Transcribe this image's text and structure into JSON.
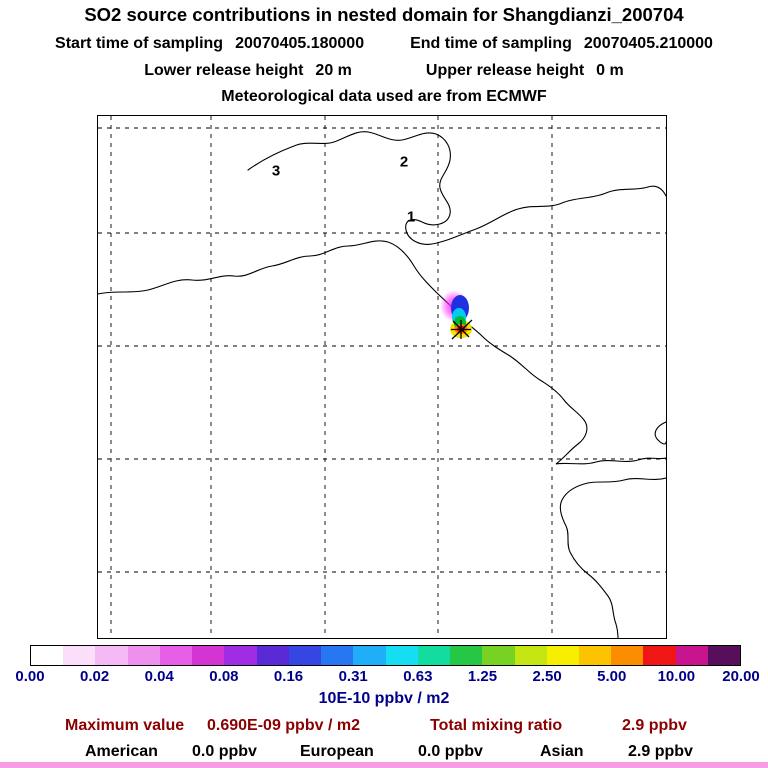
{
  "header": {
    "title": "SO2 source contributions in nested domain for Shangdianzi_200704",
    "sampling": {
      "start_label": "Start time of sampling",
      "start_value": "20070405.180000",
      "end_label": "End time of sampling",
      "end_value": "20070405.210000"
    },
    "release": {
      "lower_label": "Lower release height",
      "lower_value": "20 m",
      "upper_label": "Upper release height",
      "upper_value": "0 m"
    },
    "met_source": "Meteorological data used are from ECMWF"
  },
  "map": {
    "region_labels": [
      {
        "text": "3"
      },
      {
        "text": "2"
      },
      {
        "text": "1"
      }
    ]
  },
  "chart_data": {
    "type": "heatmap",
    "title": "SO2 source contributions in nested domain for Shangdianzi_200704",
    "units": "10E-10 ppbv / m2",
    "colorbar": {
      "tick_labels": [
        "0.00",
        "0.02",
        "0.04",
        "0.08",
        "0.16",
        "0.31",
        "0.63",
        "1.25",
        "2.50",
        "5.00",
        "10.00",
        "20.00"
      ],
      "colors": [
        "#ffffff",
        "#fadefa",
        "#f5baf5",
        "#ee90ee",
        "#e55ee5",
        "#d534d5",
        "#a02ce4",
        "#5a2ad6",
        "#3546e2",
        "#2877f2",
        "#21aef8",
        "#16def2",
        "#12dc9e",
        "#27c746",
        "#77d224",
        "#c5e513",
        "#f5ee00",
        "#fbc300",
        "#fb8d00",
        "#f01616",
        "#c9148f",
        "#570f5c"
      ],
      "label_color": "#00008b"
    },
    "plume": {
      "approx_center_frac": {
        "x": 0.64,
        "y": 0.41
      },
      "peak_color": "#e80000"
    },
    "stats": {
      "max_label": "Maximum value",
      "max_value": "0.690E-09 ppbv / m2",
      "mixing_label": "Total mixing ratio",
      "mixing_value": "2.9 ppbv",
      "color": "#8b0000",
      "contributions": [
        {
          "region": "American",
          "value": "0.0 ppbv"
        },
        {
          "region": "European",
          "value": "0.0 ppbv"
        },
        {
          "region": "Asian",
          "value": "2.9 ppbv"
        }
      ]
    }
  }
}
